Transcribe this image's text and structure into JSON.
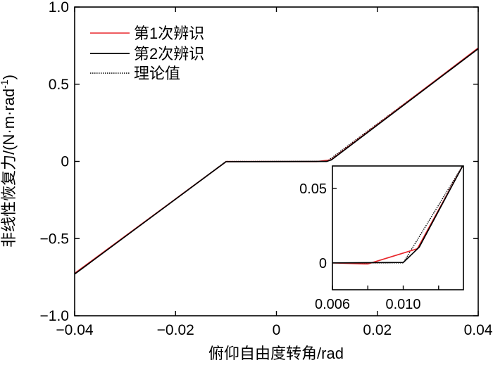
{
  "chart_data": [
    {
      "type": "line",
      "role": "main",
      "xlabel": "俯仰自由度转角/rad",
      "ylabel": "非线性恢复力/(N·m·rad",
      "ylabel_sup": "-1",
      "ylabel_close": ")",
      "xlim": [
        -0.04,
        0.04
      ],
      "ylim": [
        -1.0,
        1.0
      ],
      "xticks": [
        -0.04,
        -0.02,
        0,
        0.02,
        0.04
      ],
      "xtick_labels": [
        "−0.04",
        "−0.02",
        "0",
        "0.02",
        "0.04"
      ],
      "yticks": [
        -1.0,
        -0.5,
        0,
        0.5,
        1.0
      ],
      "ytick_labels": [
        "−1.0",
        "−0.5",
        "0",
        "0.5",
        "1.0"
      ],
      "grid": false,
      "legend_position": "top-left",
      "series": [
        {
          "name": "第1次辨识",
          "color": "#e8262b",
          "dash": "solid",
          "points": [
            [
              -0.04,
              -0.725
            ],
            [
              -0.0102,
              -0.007
            ],
            [
              -0.01,
              -0.001
            ],
            [
              0.008,
              -0.001
            ],
            [
              0.0108,
              0.01
            ],
            [
              0.04,
              0.735
            ]
          ]
        },
        {
          "name": "第2次辨识",
          "color": "#000000",
          "dash": "solid",
          "points": [
            [
              -0.04,
              -0.73
            ],
            [
              -0.01,
              -0.002
            ],
            [
              0.01,
              0.0
            ],
            [
              0.0109,
              0.01
            ],
            [
              0.04,
              0.73
            ]
          ]
        },
        {
          "name": "理论值",
          "color": "#000000",
          "dash": "dotted",
          "points": [
            [
              -0.04,
              -0.73
            ],
            [
              -0.01,
              0.0
            ],
            [
              0.01,
              0.0
            ],
            [
              0.04,
              0.73
            ]
          ]
        }
      ]
    },
    {
      "type": "line",
      "role": "inset",
      "xlim": [
        0.006,
        0.0134
      ],
      "ylim": [
        -0.018,
        0.065
      ],
      "xticks": [
        0.006,
        0.008,
        0.01,
        0.012
      ],
      "xtick_labels": [
        "0.006",
        "",
        "0.010",
        ""
      ],
      "yticks": [
        0,
        0.05
      ],
      "ytick_labels": [
        "0",
        "0.05"
      ],
      "grid": false,
      "series": [
        {
          "name": "第1次辨识",
          "color": "#e8262b",
          "dash": "solid",
          "points": [
            [
              0.006,
              0.0
            ],
            [
              0.0078,
              -0.0007
            ],
            [
              0.008,
              -0.0007
            ],
            [
              0.0108,
              0.0095
            ],
            [
              0.0134,
              0.066
            ]
          ]
        },
        {
          "name": "第2次辨识",
          "color": "#000000",
          "dash": "solid",
          "points": [
            [
              0.006,
              0.0
            ],
            [
              0.01,
              0.0003
            ],
            [
              0.0109,
              0.0105
            ],
            [
              0.0134,
              0.066
            ]
          ]
        },
        {
          "name": "理论值",
          "color": "#000000",
          "dash": "dotted",
          "points": [
            [
              0.006,
              0.0
            ],
            [
              0.01,
              0.0
            ],
            [
              0.0134,
              0.066
            ]
          ]
        }
      ]
    }
  ]
}
